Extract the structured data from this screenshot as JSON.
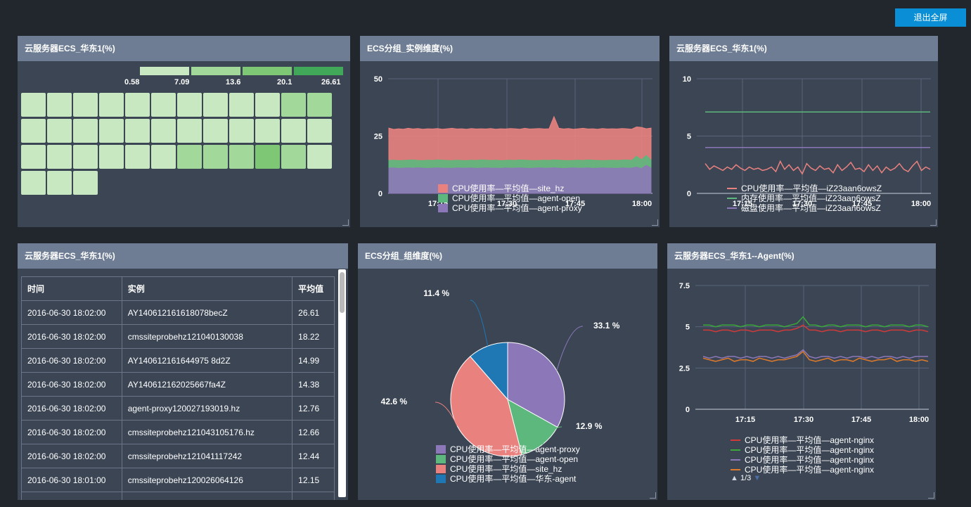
{
  "toolbar": {
    "exit_fullscreen_label": "退出全屏"
  },
  "panels": {
    "heatmap": {
      "title": "云服务器ECS_华东1(%)",
      "legend": {
        "labels": [
          "0.58",
          "7.09",
          "13.6",
          "20.1",
          "26.61"
        ],
        "colors": [
          "#c8e8c2",
          "#a3d89b",
          "#7ec774",
          "#40a858"
        ]
      },
      "cells": [
        0,
        0,
        0,
        0,
        0,
        0,
        0,
        0,
        0,
        0,
        1,
        1,
        0,
        0,
        0,
        0,
        0,
        0,
        0,
        0,
        0,
        0,
        0,
        0,
        0,
        0,
        0,
        0,
        0,
        0,
        1,
        1,
        1,
        2,
        1,
        0,
        0,
        0,
        0
      ]
    },
    "ecs_instance": {
      "title": "ECS分组_实例维度(%)",
      "legend_colors": [
        "#e9827f",
        "#5cb87d",
        "#8c78b8"
      ]
    },
    "ecs_hz1": {
      "title": "云服务器ECS_华东1(%)",
      "legend_colors": [
        "#e9827f",
        "#5cb87d",
        "#8c78b8"
      ]
    },
    "table": {
      "title": "云服务器ECS_华东1(%)",
      "headers": [
        "时间",
        "实例",
        "平均值"
      ],
      "rows": [
        [
          "2016-06-30 18:02:00",
          "AY140612161618078becZ",
          "26.61"
        ],
        [
          "2016-06-30 18:02:00",
          "cmssiteprobehz121040130038",
          "18.22"
        ],
        [
          "2016-06-30 18:02:00",
          "AY140612161644975 8d2Z",
          "14.99"
        ],
        [
          "2016-06-30 18:02:00",
          "AY140612162025667fa4Z",
          "14.38"
        ],
        [
          "2016-06-30 18:02:00",
          "agent-proxy120027193019.hz",
          "12.76"
        ],
        [
          "2016-06-30 18:02:00",
          "cmssiteprobehz121043105176.hz",
          "12.66"
        ],
        [
          "2016-06-30 18:02:00",
          "cmssiteprobehz121041117242",
          "12.44"
        ],
        [
          "2016-06-30 18:01:00",
          "cmssiteprobehz120026064126",
          "12.15"
        ],
        [
          "",
          "",
          ""
        ]
      ]
    },
    "pie": {
      "title": "ECS分组_组维度(%)",
      "legend_colors": [
        "#8c78b8",
        "#5cb87d",
        "#e9827f",
        "#1f78b4"
      ]
    },
    "agent": {
      "title": "云服务器ECS_华东1--Agent(%)",
      "legend_colors": [
        "#d23a3a",
        "#3aa83a",
        "#8c78b8",
        "#e07b2a"
      ],
      "pager": "1/3"
    }
  },
  "chart_data": [
    {
      "type": "area",
      "panel": "ECS分组_实例维度(%)",
      "x_ticks": [
        "17:15",
        "17:30",
        "17:45",
        "18:00"
      ],
      "ylim": [
        0,
        50
      ],
      "y_ticks": [
        "0",
        "25",
        "50"
      ],
      "grid": true,
      "legend_position": "bottom",
      "series": [
        {
          "name": "CPU使用率—平均值—site_hz",
          "color": "#e9827f",
          "values": [
            28.5,
            27.9,
            28.2,
            28.0,
            28.4,
            28.1,
            28.3,
            28.0,
            28.2,
            28.1,
            28.3,
            28.0,
            28.2,
            28.4,
            28.1,
            28.2,
            28.0,
            28.3,
            28.1,
            28.2,
            28.1,
            28.3,
            28.0,
            28.2,
            28.1,
            28.3,
            28.2,
            28.0,
            28.4,
            28.1,
            28.2,
            28.3,
            28.1,
            28.2,
            33.5,
            28.4,
            28.1,
            28.3,
            28.0,
            28.2,
            28.4,
            28.1,
            28.2,
            28.0,
            28.3,
            28.1,
            28.2,
            28.1,
            28.3,
            28.2,
            28.0,
            29.0,
            28.8,
            28.2,
            28.5
          ]
        },
        {
          "name": "CPU使用率—平均值—agent-open",
          "color": "#5cb87d",
          "values": [
            14.4,
            14.5,
            14.3,
            14.4,
            14.5,
            14.6,
            14.4,
            14.3,
            14.5,
            14.4,
            14.6,
            14.5,
            14.4,
            14.3,
            14.5,
            14.4,
            14.3,
            14.5,
            14.4,
            14.6,
            14.5,
            14.4,
            14.5,
            14.3,
            14.4,
            14.5,
            14.4,
            14.6,
            14.5,
            14.4,
            14.3,
            14.4,
            14.5,
            14.4,
            14.6,
            14.5,
            14.4,
            14.3,
            14.4,
            14.5,
            14.4,
            14.6,
            14.5,
            14.4,
            14.3,
            14.4,
            14.5,
            14.4,
            14.5,
            14.6,
            14.4,
            16.2,
            14.6,
            16.5,
            14.5
          ]
        },
        {
          "name": "CPU使用率—平均值—agent-proxy",
          "color": "#8c78b8",
          "values": [
            11.0,
            11.1,
            10.9,
            11.0,
            11.1,
            11.0,
            11.2,
            11.0,
            10.9,
            11.0,
            11.1,
            11.0,
            11.0,
            10.9,
            11.1,
            11.0,
            11.0,
            11.1,
            10.9,
            11.0,
            11.1,
            11.0,
            11.0,
            10.9,
            11.1,
            11.0,
            11.0,
            11.1,
            11.0,
            10.9,
            11.0,
            11.1,
            11.0,
            11.0,
            11.2,
            11.0,
            10.9,
            11.0,
            11.1,
            11.0,
            11.0,
            11.1,
            10.9,
            11.0,
            11.1,
            11.0,
            11.0,
            10.9,
            11.1,
            11.0,
            11.0,
            11.5,
            10.8,
            12.2,
            11.0
          ]
        }
      ]
    },
    {
      "type": "line",
      "panel": "云服务器ECS_华东1(%)",
      "x_ticks": [
        "17:15",
        "17:30",
        "17:45",
        "18:00"
      ],
      "ylim": [
        0,
        10
      ],
      "y_ticks": [
        "0",
        "5",
        "10"
      ],
      "grid": true,
      "legend_position": "bottom",
      "series": [
        {
          "name": "CPU使用率—平均值—iZ23aan6owsZ",
          "color": "#e9827f",
          "values": [
            2.6,
            2.1,
            2.4,
            2.2,
            2.0,
            2.3,
            2.1,
            2.5,
            2.2,
            2.0,
            2.3,
            2.1,
            2.2,
            2.0,
            2.1,
            2.3,
            1.9,
            2.8,
            2.1,
            2.5,
            2.0,
            2.3,
            1.7,
            2.6,
            2.2,
            2.0,
            2.4,
            2.1,
            2.2,
            1.8,
            2.5,
            2.0,
            2.3,
            2.7,
            2.1,
            2.2,
            1.9,
            2.5,
            2.0,
            2.4,
            1.8,
            2.3,
            2.0,
            2.2,
            2.6,
            2.1,
            1.9,
            2.4,
            2.8,
            2.0,
            2.3,
            2.1
          ]
        },
        {
          "name": "内存使用率—平均值—iZ23aan6owsZ",
          "color": "#5cb87d",
          "values": [
            7.1,
            7.1,
            7.1,
            7.1,
            7.1,
            7.1,
            7.1,
            7.1,
            7.1,
            7.1,
            7.1,
            7.1,
            7.1,
            7.1,
            7.1,
            7.1,
            7.1,
            7.1,
            7.1,
            7.1,
            7.1,
            7.1,
            7.1,
            7.1,
            7.1,
            7.1,
            7.1,
            7.1,
            7.1,
            7.1,
            7.1,
            7.1,
            7.1,
            7.1,
            7.1,
            7.1,
            7.1,
            7.1,
            7.1,
            7.1,
            7.1,
            7.1,
            7.1,
            7.1,
            7.1,
            7.1,
            7.1,
            7.1,
            7.1,
            7.1,
            7.1,
            7.1
          ]
        },
        {
          "name": "磁盘使用率—平均值—iZ23aan6owsZ",
          "color": "#8c78b8",
          "values": [
            4.0,
            4.0,
            4.0,
            4.0,
            4.0,
            4.0,
            4.0,
            4.0,
            4.0,
            4.0,
            4.0,
            4.0,
            4.0,
            4.0,
            4.0,
            4.0,
            4.0,
            4.0,
            4.0,
            4.0,
            4.0,
            4.0,
            4.0,
            4.0,
            4.0,
            4.0,
            4.0,
            4.0,
            4.0,
            4.0,
            4.0,
            4.0,
            4.0,
            4.0,
            4.0,
            4.0,
            4.0,
            4.0,
            4.0,
            4.0,
            4.0,
            4.0,
            4.0,
            4.0,
            4.0,
            4.0,
            4.0,
            4.0,
            4.0,
            4.0,
            4.0,
            4.0
          ]
        }
      ]
    },
    {
      "type": "pie",
      "panel": "ECS分组_组维度(%)",
      "legend_position": "bottom",
      "slices": [
        {
          "name": "CPU使用率—平均值—agent-proxy",
          "value": 33.1,
          "label": "33.1 %",
          "color": "#8c78b8"
        },
        {
          "name": "CPU使用率—平均值—agent-open",
          "value": 12.9,
          "label": "12.9 %",
          "color": "#5cb87d"
        },
        {
          "name": "CPU使用率—平均值—site_hz",
          "value": 42.6,
          "label": "42.6 %",
          "color": "#e9827f"
        },
        {
          "name": "CPU使用率—平均值—华东-agent",
          "value": 11.4,
          "label": "11.4 %",
          "color": "#1f78b4"
        }
      ]
    },
    {
      "type": "line",
      "panel": "云服务器ECS_华东1--Agent(%)",
      "x_ticks": [
        "17:15",
        "17:30",
        "17:45",
        "18:00"
      ],
      "ylim": [
        0,
        7.5
      ],
      "y_ticks": [
        "0",
        "2.5",
        "5",
        "7.5"
      ],
      "grid": true,
      "legend_position": "bottom",
      "series": [
        {
          "name": "CPU使用率—平均值—agent-nginx",
          "color": "#d23a3a",
          "values": [
            4.8,
            4.8,
            4.7,
            4.8,
            4.8,
            4.7,
            4.8,
            4.8,
            4.7,
            4.8,
            4.8,
            4.8,
            4.7,
            4.8,
            4.8,
            4.9,
            5.1,
            4.8,
            4.8,
            4.7,
            4.8,
            4.8,
            4.7,
            4.8,
            4.8,
            4.8,
            4.7,
            4.8,
            4.8,
            4.7,
            4.8,
            4.8,
            4.8,
            4.7,
            4.8,
            4.8,
            4.7
          ]
        },
        {
          "name": "CPU使用率—平均值—agent-nginx",
          "color": "#3aa83a",
          "values": [
            5.1,
            5.1,
            5.0,
            5.1,
            5.1,
            5.1,
            5.0,
            5.1,
            5.1,
            5.0,
            5.1,
            5.1,
            5.1,
            5.0,
            5.1,
            5.2,
            5.6,
            5.1,
            5.1,
            5.0,
            5.1,
            5.1,
            5.0,
            5.1,
            5.1,
            5.1,
            5.0,
            5.1,
            5.1,
            5.0,
            5.1,
            5.1,
            5.1,
            5.0,
            5.1,
            5.1,
            5.0
          ]
        },
        {
          "name": "CPU使用率—平均值—agent-nginx",
          "color": "#8c78b8",
          "values": [
            3.2,
            3.1,
            3.2,
            3.1,
            3.2,
            3.2,
            3.1,
            3.2,
            3.1,
            3.2,
            3.2,
            3.1,
            3.2,
            3.1,
            3.2,
            3.3,
            3.6,
            3.2,
            3.1,
            3.2,
            3.2,
            3.1,
            3.2,
            3.1,
            3.2,
            3.2,
            3.1,
            3.2,
            3.1,
            3.2,
            3.2,
            3.1,
            3.2,
            3.1,
            3.2,
            3.2,
            3.2
          ]
        },
        {
          "name": "CPU使用率—平均值—agent-nginx",
          "color": "#e07b2a",
          "values": [
            3.1,
            3.0,
            2.9,
            3.0,
            3.1,
            2.9,
            3.0,
            3.0,
            2.9,
            3.1,
            3.0,
            2.9,
            3.0,
            3.0,
            3.1,
            3.2,
            3.5,
            3.0,
            2.9,
            3.0,
            3.1,
            2.9,
            3.0,
            3.0,
            2.9,
            3.1,
            3.0,
            2.9,
            3.0,
            3.0,
            3.1,
            2.9,
            3.0,
            3.0,
            2.9,
            3.0,
            2.9
          ]
        }
      ]
    }
  ]
}
